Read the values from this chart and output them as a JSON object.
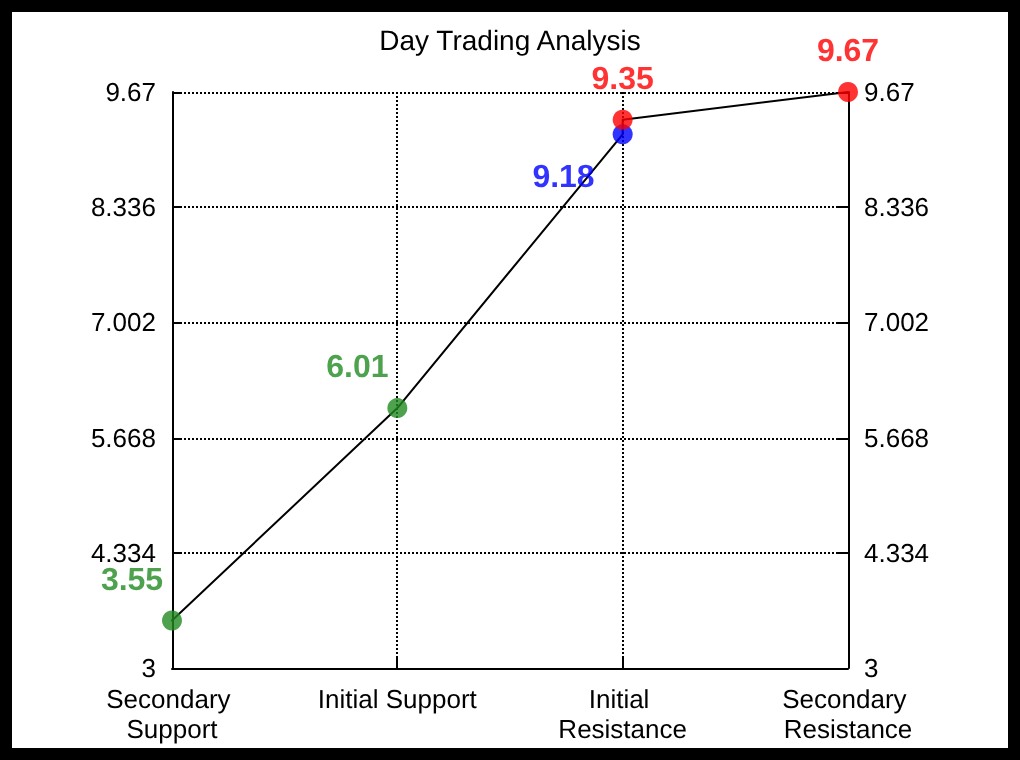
{
  "chart_data": {
    "type": "line",
    "title": "Day Trading Analysis",
    "categories": [
      "Secondary Support",
      "Initial Support",
      "Initial Resistance",
      "Secondary Resistance"
    ],
    "series": [
      {
        "color": "#000000",
        "marker": "none",
        "x": [
          "Secondary Support",
          "Initial Support",
          "Initial Resistance",
          "Initial Resistance",
          "Secondary Resistance"
        ],
        "values": [
          3.55,
          6.01,
          9.18,
          9.35,
          9.67
        ]
      },
      {
        "type": "scatter",
        "color": "#228b22",
        "x": [
          "Secondary Support",
          "Initial Support"
        ],
        "values": [
          3.55,
          6.01
        ],
        "value_labels": [
          "3.55",
          "6.01"
        ]
      },
      {
        "type": "scatter",
        "color": "#0000ff",
        "x": [
          "Initial Resistance"
        ],
        "values": [
          9.18
        ],
        "value_labels": [
          "9.18"
        ]
      },
      {
        "type": "scatter",
        "color": "#ff0000",
        "x": [
          "Initial Resistance",
          "Secondary Resistance"
        ],
        "values": [
          9.35,
          9.67
        ],
        "value_labels": [
          "9.35",
          "9.67"
        ]
      }
    ],
    "marker": "circle",
    "line_style": "solid",
    "ylim": [
      3,
      9.67
    ],
    "yticks": [
      3,
      4.334,
      5.668,
      7.002,
      8.336,
      9.67
    ],
    "y2lim": [
      3,
      9.67
    ],
    "y2ticks": [
      3,
      4.334,
      5.668,
      7.002,
      8.336,
      9.67
    ],
    "grid": true
  }
}
